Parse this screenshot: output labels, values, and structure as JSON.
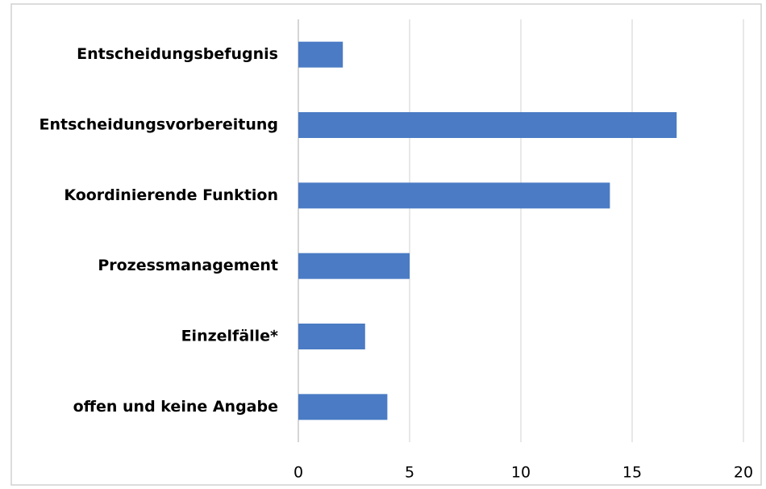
{
  "chart_data": {
    "type": "bar",
    "orientation": "horizontal",
    "categories": [
      "Entscheidungsbefugnis",
      "Entscheidungsvorbereitung",
      "Koordinierende Funktion",
      "Prozessmanagement",
      "Einzelfälle*",
      "offen und keine Angabe"
    ],
    "values": [
      2,
      17,
      14,
      5,
      3,
      4
    ],
    "color": "#4a7bc4",
    "xlim": [
      0,
      20
    ],
    "xticks": [
      0,
      5,
      10,
      15,
      20
    ],
    "grid": true
  }
}
